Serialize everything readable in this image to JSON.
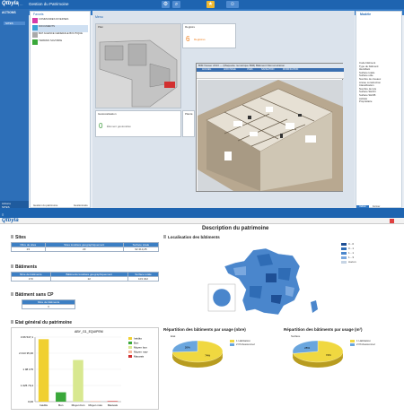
{
  "app": {
    "logo": "Qtbyla",
    "separator": "| ...",
    "title": "Gestion du Patrimoine"
  },
  "sidenav": {
    "header": "ACTIONS",
    "item": "SITES",
    "footer": [
      "Actions",
      "SITES",
      "BATIM."
    ]
  },
  "favorites": {
    "title": "Favoris",
    "items": [
      {
        "label": "COMMANDES DIVERSES",
        "color": "#d63aa8"
      },
      {
        "label": "DOCUMENTS",
        "color": "#3aa0d6",
        "selected": true
      },
      {
        "label": "BAT AGENCE GENERALE BOUTIQUE",
        "color": "#aaaaaa"
      },
      {
        "label": "TERRAIN SAVOIRIE",
        "color": "#3aa83a"
      }
    ],
    "footer_left": "Gestion du patrimoine",
    "footer_right": "Gestionnaire"
  },
  "menu": {
    "title": "Menu"
  },
  "tiles": {
    "plan": {
      "title": "Plan"
    },
    "registre": {
      "title": "Registre",
      "value": "6",
      "unit": "Registres"
    },
    "geoloc": {
      "title": "Géolocalisation",
      "value": "0",
      "unit": "Élément géolocalisé"
    },
    "plantheme": {
      "title": "Plantè"
    }
  },
  "bim_viewer": {
    "title": "BIM Viewer 2013 — (Maquette numérique BIM) Bâtiment Démonstration",
    "ribbon_tabs": [
      "ACCUEIL",
      "AFFICHAGE",
      "VUES",
      "NAVIGATION",
      "MODIFICATION"
    ]
  },
  "rightpanel": {
    "title": "Modèle",
    "lines": [
      "Code bâtiment",
      "Type de bâtiment",
      "Identifiant",
      "Surface totale",
      "Surface utile",
      "Nombre de niveaux",
      "Année construction",
      "Classification",
      "Nombre de lots",
      "Surface SHON",
      "Surface SHOB",
      "Activité",
      "Propriétaire"
    ],
    "footer_left": "Valider",
    "footer_right": "Fermer"
  },
  "bottom_app": {
    "logo": "Qtbyla",
    "sections": {
      "sites": "Sites",
      "batiments": "Bâtiments",
      "batiments_sans_cp": "Bâtiment sans CP",
      "etat": "Etat général du patrimoine"
    },
    "sites_table": {
      "headers": [
        "Nbre de sites",
        "Sites localisés géographiquement",
        "Surface totale"
      ],
      "values": [
        "23",
        "23",
        "92 413,25"
      ]
    },
    "bat_table": {
      "headers": [
        "Nbre de bâtiments",
        "Bâtiments localisés géographiquement",
        "Surface totale"
      ],
      "values": [
        "170",
        "22",
        "103 322"
      ]
    },
    "cp_table": {
      "headers": [
        "Nbre de bâtiments"
      ],
      "values": [
        "3"
      ]
    }
  },
  "description": {
    "title": "Description du patrimoine",
    "map_title": "Localisation des bâtiments"
  },
  "map_legend": [
    {
      "label": "0 - 0",
      "color": "#1e4f95"
    },
    {
      "label": "0 - 1",
      "color": "#2f6cb5"
    },
    {
      "label": "1 - 1",
      "color": "#4a86cc"
    },
    {
      "label": "1 - 3",
      "color": "#7aa8df"
    },
    {
      "label": "Aucun",
      "color": "#c6d4e4"
    }
  ],
  "pie1": {
    "title": "Répartition des bâtiments par usage (nbre)",
    "label": "Etat",
    "slices": [
      {
        "label": "1 Habitation",
        "value": 74,
        "color": "#f0d840"
      },
      {
        "label": "2 Professionnel",
        "value": 26,
        "color": "#6aa6de"
      }
    ]
  },
  "pie2": {
    "title": "Répartition des bâtiments par usage (m²)",
    "label": "Surface",
    "slices": [
      {
        "label": "1 Habitation",
        "value": 72,
        "color": "#f0d840"
      },
      {
        "label": "2 Professionnel",
        "value": 28,
        "color": "#6aa6de"
      }
    ]
  },
  "chart_data": {
    "type": "bar",
    "title": "ABY_G1_EQUIPEM",
    "categories": [
      "Inédits",
      "Bon",
      "Moyen bon",
      "Moyen mav",
      "Mauvais"
    ],
    "values": [
      3000000,
      450000,
      2000000,
      0,
      0
    ],
    "colors": [
      "#f0d030",
      "#3aa83a",
      "#d8e890",
      "#f6b8a0",
      "#d23030"
    ],
    "ytick_labels": [
      "3 06 547,1",
      "2 013 35,36",
      "1 08 175",
      "1 025 79,4",
      "0,00"
    ],
    "legend": [
      "Inédits",
      "Bon",
      "Moyen bon",
      "Moyen mav",
      "Mauvais"
    ],
    "ylim": [
      0,
      3100000
    ]
  }
}
